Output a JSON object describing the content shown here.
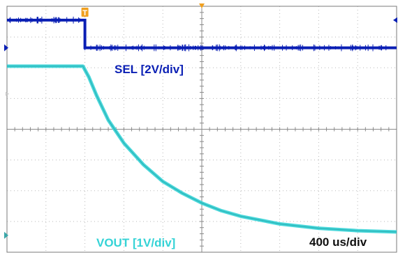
{
  "chart_data": {
    "type": "line",
    "title": "",
    "xlabel": "",
    "ylabel": "",
    "grid": true,
    "timebase_label": "400 us/div",
    "x_divisions": 10,
    "y_divisions": 8,
    "xlim": [
      0,
      10
    ],
    "ylim": [
      0,
      8
    ],
    "series": [
      {
        "name": "SEL [2V/div]",
        "color": "#0a1fb4",
        "x": [
          0.0,
          2.0,
          2.0,
          10.0
        ],
        "y": [
          7.55,
          7.55,
          6.65,
          6.65
        ]
      },
      {
        "name": "VOUT [1V/div]",
        "color": "#35d3d6",
        "x": [
          0.0,
          1.95,
          2.1,
          2.3,
          2.6,
          3.0,
          3.5,
          4.0,
          4.5,
          5.0,
          5.5,
          6.0,
          7.0,
          8.0,
          9.0,
          10.0
        ],
        "y": [
          6.05,
          6.05,
          5.7,
          5.1,
          4.3,
          3.55,
          2.85,
          2.3,
          1.92,
          1.6,
          1.35,
          1.17,
          0.92,
          0.78,
          0.7,
          0.66
        ]
      }
    ],
    "markers": [
      {
        "name": "trigger-position",
        "color": "#f0a020"
      },
      {
        "name": "trigger-marker-t",
        "label": "T",
        "color": "#f0a020"
      }
    ]
  }
}
